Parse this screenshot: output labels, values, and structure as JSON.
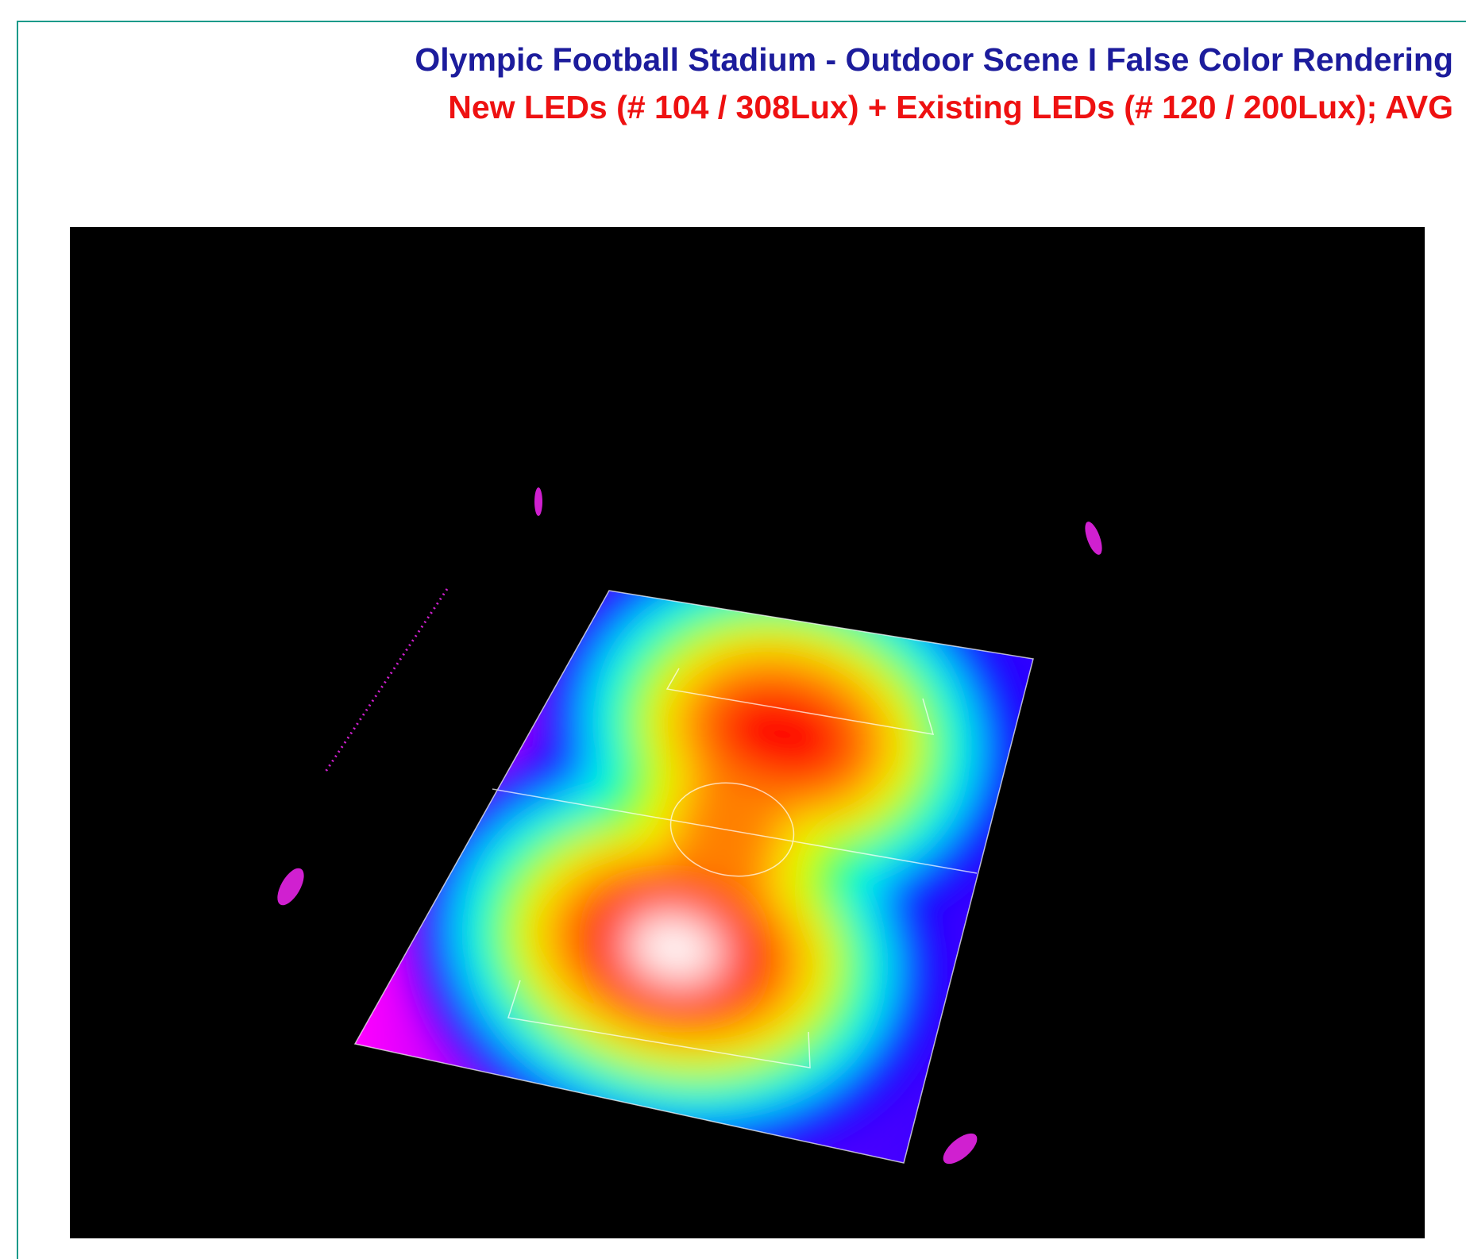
{
  "header": {
    "title": "Olympic Football Stadium - Outdoor Scene I False Color Rendering",
    "subtitle": "New LEDs (# 104 / 308Lux) + Existing LEDs (# 120 / 200Lux); AVG"
  }
}
